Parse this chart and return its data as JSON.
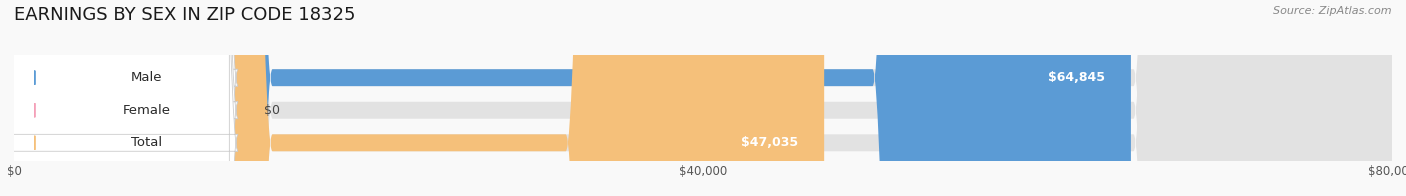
{
  "title": "EARNINGS BY SEX IN ZIP CODE 18325",
  "source": "Source: ZipAtlas.com",
  "categories": [
    "Male",
    "Female",
    "Total"
  ],
  "values": [
    64845,
    0,
    47035
  ],
  "max_value": 80000,
  "bar_colors": [
    "#5b9bd5",
    "#f4a0b8",
    "#f5c07a"
  ],
  "value_labels": [
    "$64,845",
    "$0",
    "$47,035"
  ],
  "x_ticks": [
    0,
    40000,
    80000
  ],
  "x_tick_labels": [
    "$0",
    "$40,000",
    "$80,000"
  ],
  "title_fontsize": 13,
  "label_fontsize": 9.5,
  "tick_fontsize": 8.5,
  "source_fontsize": 8,
  "background_color": "#f9f9f9"
}
